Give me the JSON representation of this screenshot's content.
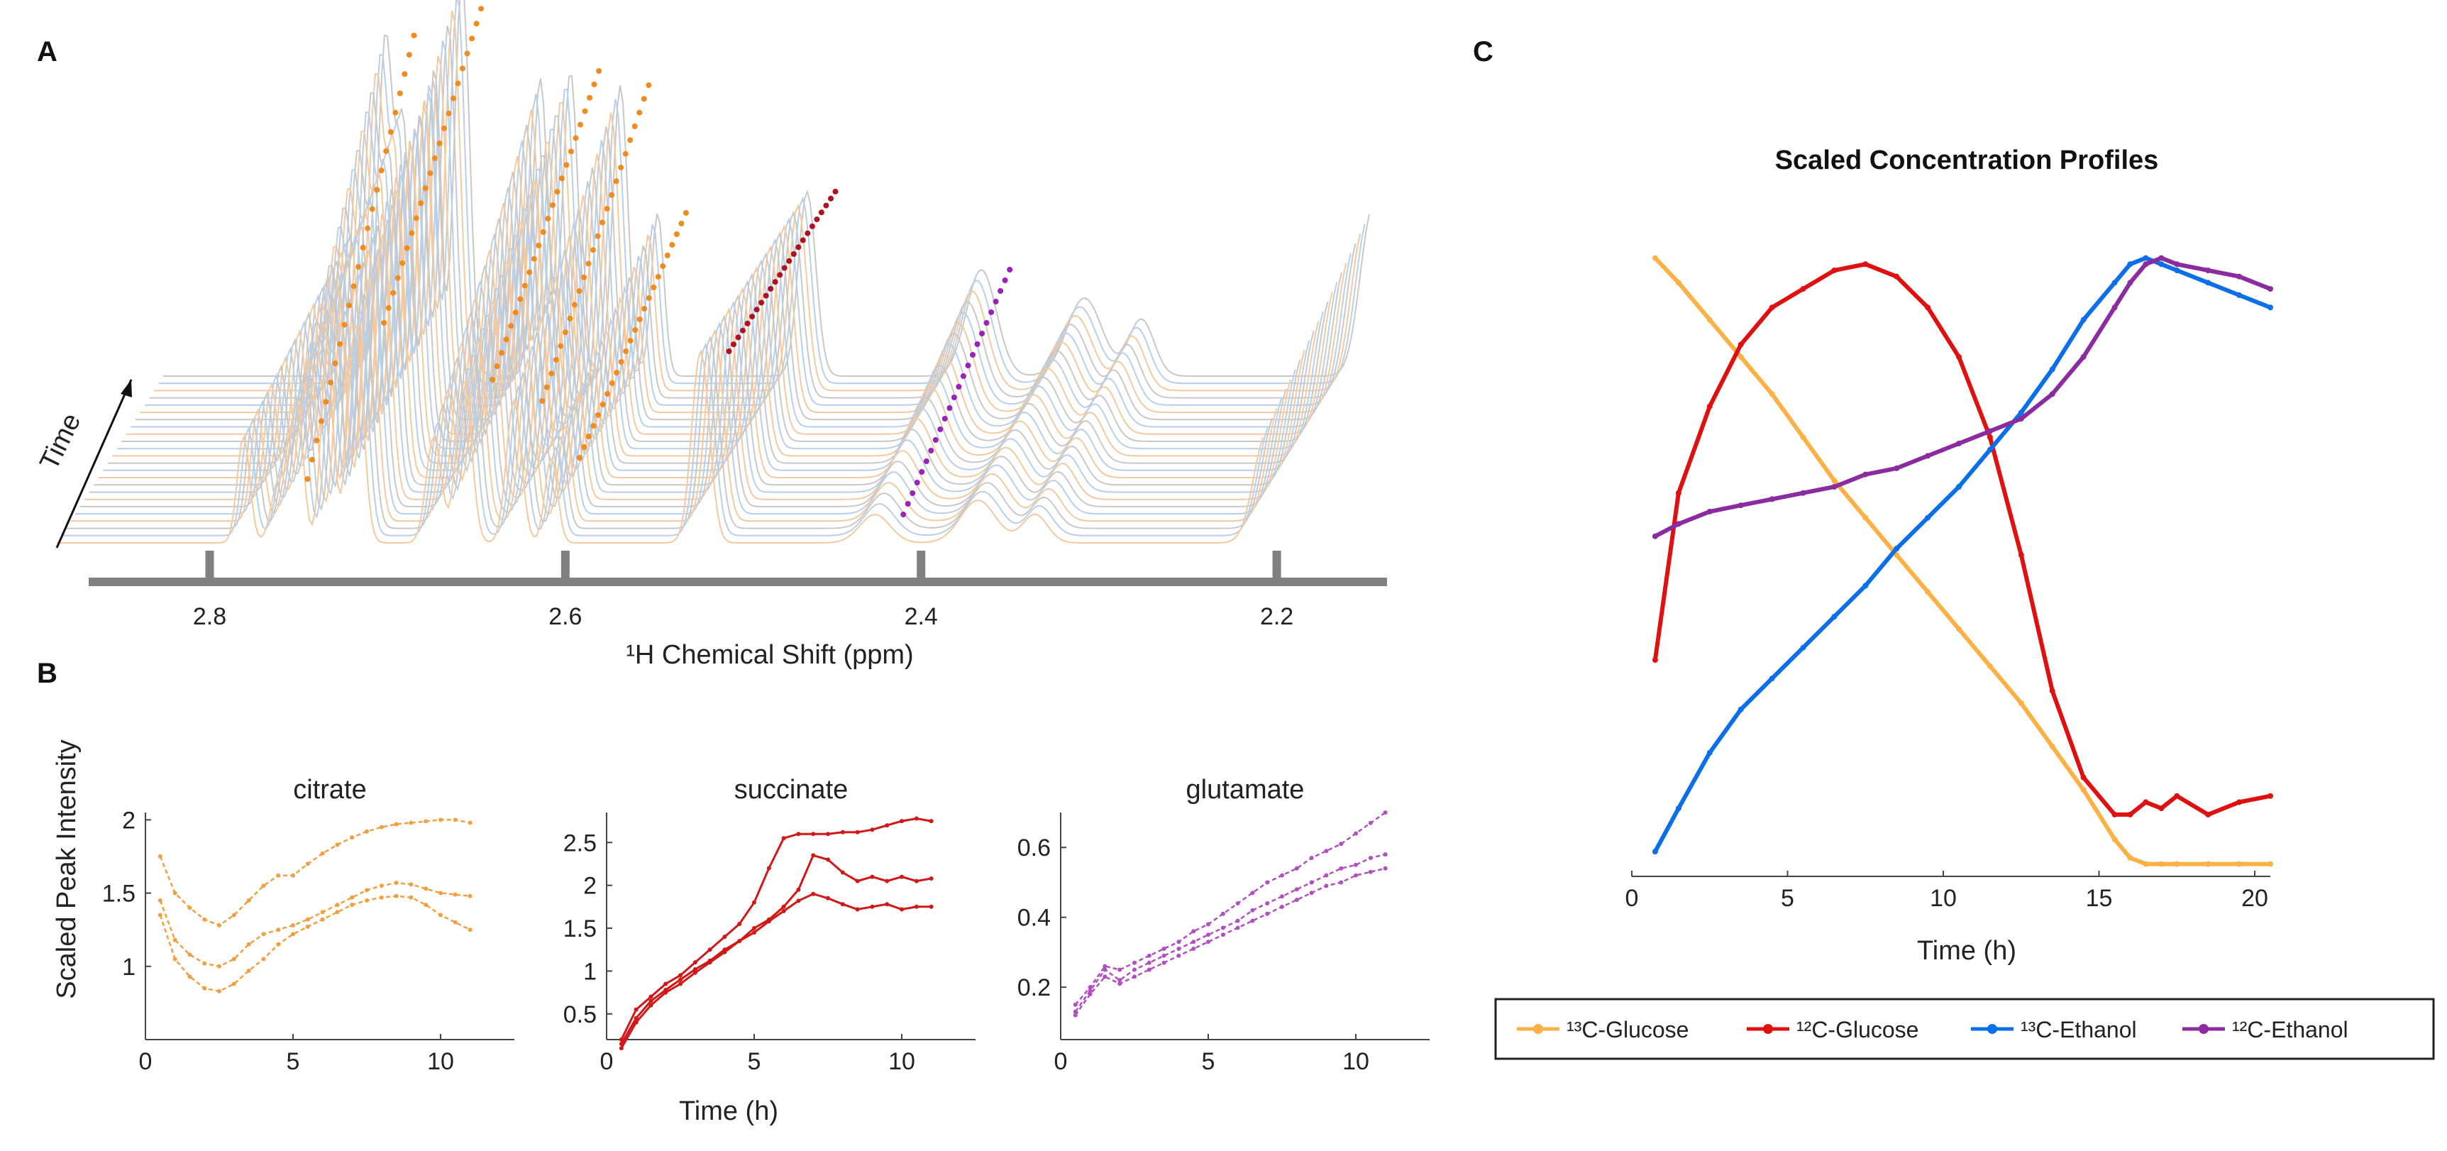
{
  "panels": {
    "a": "A",
    "b": "B",
    "c": "C"
  },
  "colors": {
    "citrate": "#F0A040",
    "succinate": "#D01818",
    "glutamate": "#B050C0",
    "glc13": "#FDB144",
    "glc12": "#E01010",
    "eth13": "#0A6FE8",
    "eth12": "#8A2CA0",
    "spectrum_orange": "#F28A1E",
    "spectrum_red": "#B01020",
    "spectrum_purple": "#9A20B8"
  },
  "spectra_panel": {
    "time_label": "Time",
    "axis_title": "¹H Chemical Shift (ppm)",
    "ticks": [
      2.8,
      2.6,
      2.4,
      2.2
    ],
    "xlim": [
      2.87,
      2.14
    ],
    "peak_groups": [
      {
        "name": "citrate",
        "color_key": "spectrum_orange"
      },
      {
        "name": "succinate",
        "color_key": "spectrum_red"
      },
      {
        "name": "glutamate",
        "color_key": "spectrum_purple"
      }
    ]
  },
  "chart_data": [
    {
      "type": "line",
      "title": "citrate",
      "xlabel": "",
      "ylabel": "Scaled Peak Intensity",
      "xlim": [
        0,
        12.5
      ],
      "ylim": [
        0.5,
        2.05
      ],
      "xticks": [
        0,
        5,
        10
      ],
      "yticks": [
        1,
        1.5,
        2
      ],
      "color_key": "citrate",
      "x": [
        0.5,
        1.0,
        1.5,
        2.0,
        2.5,
        3.0,
        3.5,
        4.0,
        4.5,
        5.0,
        5.5,
        6.0,
        6.5,
        7.0,
        7.5,
        8.0,
        8.5,
        9.0,
        9.5,
        10.0,
        10.5,
        11.0
      ],
      "series": [
        {
          "name": "citrate-1",
          "values": [
            1.75,
            1.5,
            1.4,
            1.32,
            1.28,
            1.35,
            1.45,
            1.55,
            1.62,
            1.62,
            1.7,
            1.77,
            1.83,
            1.88,
            1.92,
            1.95,
            1.97,
            1.98,
            1.99,
            2.0,
            2.0,
            1.98
          ]
        },
        {
          "name": "citrate-2",
          "values": [
            1.45,
            1.18,
            1.08,
            1.02,
            1.0,
            1.05,
            1.15,
            1.22,
            1.25,
            1.28,
            1.32,
            1.37,
            1.42,
            1.47,
            1.52,
            1.55,
            1.57,
            1.56,
            1.53,
            1.5,
            1.49,
            1.48
          ]
        },
        {
          "name": "citrate-3",
          "values": [
            1.35,
            1.05,
            0.93,
            0.85,
            0.83,
            0.88,
            0.97,
            1.05,
            1.15,
            1.22,
            1.27,
            1.32,
            1.37,
            1.42,
            1.45,
            1.47,
            1.48,
            1.47,
            1.42,
            1.35,
            1.3,
            1.25
          ]
        }
      ]
    },
    {
      "type": "line",
      "title": "succinate",
      "xlabel": "Time (h)",
      "ylabel": "",
      "xlim": [
        0,
        12.5
      ],
      "ylim": [
        0.2,
        2.85
      ],
      "xticks": [
        0,
        5,
        10
      ],
      "yticks": [
        0.5,
        1,
        1.5,
        2,
        2.5
      ],
      "color_key": "succinate",
      "x": [
        0.5,
        1.0,
        1.5,
        2.0,
        2.5,
        3.0,
        3.5,
        4.0,
        4.5,
        5.0,
        5.5,
        6.0,
        6.5,
        7.0,
        7.5,
        8.0,
        8.5,
        9.0,
        9.5,
        10.0,
        10.5,
        11.0
      ],
      "series": [
        {
          "name": "succinate-1",
          "values": [
            0.2,
            0.55,
            0.7,
            0.85,
            0.95,
            1.1,
            1.25,
            1.4,
            1.55,
            1.8,
            2.2,
            2.55,
            2.6,
            2.6,
            2.6,
            2.62,
            2.62,
            2.65,
            2.7,
            2.75,
            2.78,
            2.75
          ]
        },
        {
          "name": "succinate-2",
          "values": [
            0.15,
            0.45,
            0.65,
            0.78,
            0.9,
            1.02,
            1.12,
            1.25,
            1.35,
            1.5,
            1.6,
            1.75,
            1.95,
            2.35,
            2.3,
            2.15,
            2.05,
            2.1,
            2.05,
            2.1,
            2.05,
            2.08
          ]
        },
        {
          "name": "succinate-3",
          "values": [
            0.1,
            0.4,
            0.6,
            0.75,
            0.85,
            0.98,
            1.1,
            1.22,
            1.35,
            1.45,
            1.58,
            1.7,
            1.82,
            1.9,
            1.85,
            1.78,
            1.72,
            1.75,
            1.78,
            1.72,
            1.75,
            1.75
          ]
        }
      ]
    },
    {
      "type": "line",
      "title": "glutamate",
      "xlabel": "",
      "ylabel": "",
      "xlim": [
        0,
        12.5
      ],
      "ylim": [
        0.05,
        0.7
      ],
      "xticks": [
        0,
        5,
        10
      ],
      "yticks": [
        0.2,
        0.4,
        0.6
      ],
      "color_key": "glutamate",
      "x": [
        0.5,
        1.0,
        1.5,
        2.0,
        2.5,
        3.0,
        3.5,
        4.0,
        4.5,
        5.0,
        5.5,
        6.0,
        6.5,
        7.0,
        7.5,
        8.0,
        8.5,
        9.0,
        9.5,
        10.0,
        10.5,
        11.0
      ],
      "series": [
        {
          "name": "glutamate-1",
          "values": [
            0.15,
            0.2,
            0.26,
            0.25,
            0.27,
            0.29,
            0.31,
            0.33,
            0.36,
            0.38,
            0.41,
            0.44,
            0.47,
            0.5,
            0.52,
            0.54,
            0.57,
            0.59,
            0.61,
            0.64,
            0.67,
            0.7
          ]
        },
        {
          "name": "glutamate-2",
          "values": [
            0.13,
            0.19,
            0.25,
            0.22,
            0.25,
            0.27,
            0.29,
            0.31,
            0.33,
            0.35,
            0.37,
            0.39,
            0.42,
            0.44,
            0.46,
            0.48,
            0.5,
            0.52,
            0.54,
            0.55,
            0.57,
            0.58
          ]
        },
        {
          "name": "glutamate-3",
          "values": [
            0.12,
            0.18,
            0.23,
            0.21,
            0.23,
            0.25,
            0.27,
            0.29,
            0.31,
            0.33,
            0.35,
            0.37,
            0.39,
            0.41,
            0.43,
            0.45,
            0.47,
            0.49,
            0.5,
            0.52,
            0.53,
            0.54
          ]
        }
      ]
    },
    {
      "type": "line",
      "title": "Scaled Concentration Profiles",
      "xlabel": "Time (h)",
      "ylabel": "",
      "xlim": [
        0,
        20.5
      ],
      "ylim": [
        0,
        1.05
      ],
      "xticks": [
        0,
        5,
        10,
        15,
        20
      ],
      "x": [
        0.75,
        1.5,
        2.5,
        3.5,
        4.5,
        5.5,
        6.5,
        7.5,
        8.5,
        9.5,
        10.5,
        11.5,
        12.5,
        13.5,
        14.5,
        15.5,
        16.0,
        16.5,
        17.0,
        17.5,
        18.5,
        19.5,
        20.5
      ],
      "legend": [
        "¹³C-Glucose",
        "¹²C-Glucose",
        "¹³C-Ethanol",
        "¹²C-Ethanol"
      ],
      "series": [
        {
          "name": "¹³C-Glucose",
          "color_key": "glc13",
          "values": [
            1.0,
            0.96,
            0.9,
            0.84,
            0.78,
            0.71,
            0.64,
            0.58,
            0.52,
            0.46,
            0.4,
            0.34,
            0.28,
            0.21,
            0.14,
            0.06,
            0.03,
            0.02,
            0.02,
            0.02,
            0.02,
            0.02,
            0.02
          ]
        },
        {
          "name": "¹²C-Glucose",
          "color_key": "glc12",
          "values": [
            0.35,
            0.62,
            0.76,
            0.86,
            0.92,
            0.95,
            0.98,
            0.99,
            0.97,
            0.92,
            0.84,
            0.71,
            0.52,
            0.3,
            0.16,
            0.1,
            0.1,
            0.12,
            0.11,
            0.13,
            0.1,
            0.12,
            0.13
          ]
        },
        {
          "name": "¹³C-Ethanol",
          "color_key": "eth13",
          "values": [
            0.04,
            0.11,
            0.2,
            0.27,
            0.32,
            0.37,
            0.42,
            0.47,
            0.53,
            0.58,
            0.63,
            0.69,
            0.75,
            0.82,
            0.9,
            0.96,
            0.99,
            1.0,
            0.99,
            0.98,
            0.96,
            0.94,
            0.92
          ]
        },
        {
          "name": "¹²C-Ethanol",
          "color_key": "eth12",
          "values": [
            0.55,
            0.57,
            0.59,
            0.6,
            0.61,
            0.62,
            0.63,
            0.65,
            0.66,
            0.68,
            0.7,
            0.72,
            0.74,
            0.78,
            0.84,
            0.92,
            0.96,
            0.99,
            1.0,
            0.99,
            0.98,
            0.97,
            0.95
          ]
        }
      ]
    }
  ]
}
